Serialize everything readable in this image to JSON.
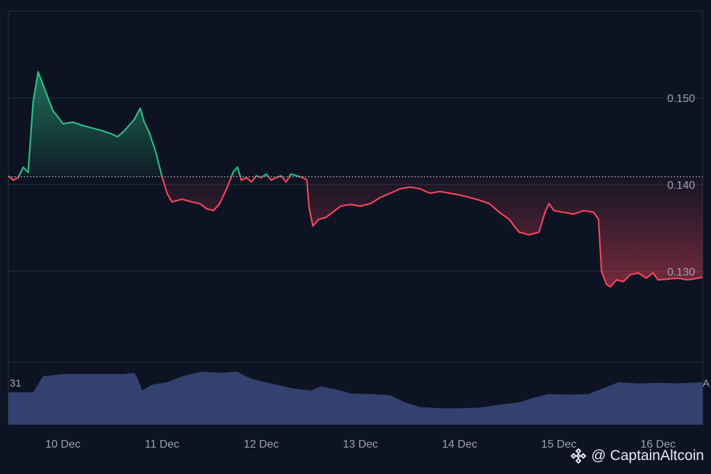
{
  "chart_data": {
    "type": "area",
    "title": "",
    "xlabel": "",
    "ylabel": "",
    "baseline": 0.1409,
    "y_ticks": [
      0.15,
      0.14,
      0.13
    ],
    "y_tick_labels": [
      "0.150",
      "0.140",
      "0.130"
    ],
    "x_tick_labels": [
      "10 Dec",
      "11 Dec",
      "12 Dec",
      "13 Dec",
      "14 Dec",
      "15 Dec",
      "16 Dec"
    ],
    "x_range": [
      9.45,
      16.45
    ],
    "ylim": [
      0.1195,
      0.16
    ],
    "grid": "horizontal",
    "colors": {
      "up": "#2ebd85",
      "down": "#f6465d",
      "volume": "#3a4a7c",
      "grid": "#2a3142",
      "text": "#9aa3b2",
      "baseline": "#c8ccd4"
    },
    "series": [
      {
        "values": [
          [
            9.45,
            0.141
          ],
          [
            9.5,
            0.1405
          ],
          [
            9.55,
            0.1408
          ],
          [
            9.6,
            0.142
          ],
          [
            9.65,
            0.1414
          ],
          [
            9.7,
            0.1495
          ],
          [
            9.75,
            0.153
          ],
          [
            9.8,
            0.1515
          ],
          [
            9.85,
            0.15
          ],
          [
            9.9,
            0.1485
          ],
          [
            9.95,
            0.1478
          ],
          [
            10.0,
            0.147
          ],
          [
            10.1,
            0.1472
          ],
          [
            10.2,
            0.1468
          ],
          [
            10.3,
            0.1465
          ],
          [
            10.4,
            0.1462
          ],
          [
            10.5,
            0.1458
          ],
          [
            10.55,
            0.1455
          ],
          [
            10.62,
            0.1462
          ],
          [
            10.72,
            0.1475
          ],
          [
            10.78,
            0.1488
          ],
          [
            10.82,
            0.1472
          ],
          [
            10.87,
            0.146
          ],
          [
            10.93,
            0.144
          ],
          [
            11.0,
            0.1409
          ],
          [
            11.05,
            0.139
          ],
          [
            11.1,
            0.138
          ],
          [
            11.2,
            0.1383
          ],
          [
            11.3,
            0.138
          ],
          [
            11.38,
            0.1378
          ],
          [
            11.45,
            0.1372
          ],
          [
            11.52,
            0.137
          ],
          [
            11.58,
            0.1378
          ],
          [
            11.65,
            0.1395
          ],
          [
            11.72,
            0.1415
          ],
          [
            11.76,
            0.142
          ],
          [
            11.8,
            0.1405
          ],
          [
            11.85,
            0.1408
          ],
          [
            11.9,
            0.1403
          ],
          [
            11.95,
            0.141
          ],
          [
            12.0,
            0.1408
          ],
          [
            12.05,
            0.1412
          ],
          [
            12.1,
            0.1405
          ],
          [
            12.15,
            0.1408
          ],
          [
            12.2,
            0.141
          ],
          [
            12.25,
            0.1403
          ],
          [
            12.3,
            0.1412
          ],
          [
            12.36,
            0.141
          ],
          [
            12.42,
            0.1408
          ],
          [
            12.46,
            0.1405
          ],
          [
            12.48,
            0.1375
          ],
          [
            12.52,
            0.1352
          ],
          [
            12.58,
            0.136
          ],
          [
            12.65,
            0.1362
          ],
          [
            12.72,
            0.1368
          ],
          [
            12.8,
            0.1375
          ],
          [
            12.9,
            0.1377
          ],
          [
            13.0,
            0.1375
          ],
          [
            13.1,
            0.1378
          ],
          [
            13.2,
            0.1385
          ],
          [
            13.3,
            0.139
          ],
          [
            13.4,
            0.1395
          ],
          [
            13.5,
            0.1397
          ],
          [
            13.6,
            0.1395
          ],
          [
            13.7,
            0.139
          ],
          [
            13.8,
            0.1392
          ],
          [
            13.9,
            0.139
          ],
          [
            14.0,
            0.1388
          ],
          [
            14.1,
            0.1385
          ],
          [
            14.2,
            0.1382
          ],
          [
            14.3,
            0.1378
          ],
          [
            14.4,
            0.1368
          ],
          [
            14.5,
            0.136
          ],
          [
            14.55,
            0.1352
          ],
          [
            14.6,
            0.1345
          ],
          [
            14.7,
            0.1342
          ],
          [
            14.8,
            0.1345
          ],
          [
            14.86,
            0.1368
          ],
          [
            14.9,
            0.1378
          ],
          [
            14.95,
            0.137
          ],
          [
            15.05,
            0.1368
          ],
          [
            15.15,
            0.1366
          ],
          [
            15.25,
            0.137
          ],
          [
            15.35,
            0.1368
          ],
          [
            15.4,
            0.136
          ],
          [
            15.43,
            0.13
          ],
          [
            15.48,
            0.1285
          ],
          [
            15.52,
            0.1282
          ],
          [
            15.58,
            0.129
          ],
          [
            15.65,
            0.1288
          ],
          [
            15.72,
            0.1296
          ],
          [
            15.8,
            0.1298
          ],
          [
            15.88,
            0.1292
          ],
          [
            15.95,
            0.1298
          ],
          [
            16.0,
            0.129
          ],
          [
            16.1,
            0.1291
          ],
          [
            16.2,
            0.1292
          ],
          [
            16.3,
            0.129
          ],
          [
            16.45,
            0.1293
          ]
        ]
      }
    ],
    "volume": {
      "label_left": "31",
      "label_right": "A",
      "values": [
        [
          9.45,
          0.55
        ],
        [
          9.7,
          0.55
        ],
        [
          9.8,
          0.82
        ],
        [
          10.0,
          0.86
        ],
        [
          10.2,
          0.86
        ],
        [
          10.4,
          0.86
        ],
        [
          10.6,
          0.86
        ],
        [
          10.72,
          0.88
        ],
        [
          10.75,
          0.8
        ],
        [
          10.8,
          0.58
        ],
        [
          10.9,
          0.68
        ],
        [
          11.05,
          0.72
        ],
        [
          11.2,
          0.82
        ],
        [
          11.4,
          0.9
        ],
        [
          11.6,
          0.88
        ],
        [
          11.75,
          0.9
        ],
        [
          11.9,
          0.78
        ],
        [
          12.1,
          0.7
        ],
        [
          12.3,
          0.62
        ],
        [
          12.5,
          0.58
        ],
        [
          12.6,
          0.65
        ],
        [
          12.75,
          0.6
        ],
        [
          12.9,
          0.53
        ],
        [
          13.1,
          0.52
        ],
        [
          13.3,
          0.5
        ],
        [
          13.45,
          0.38
        ],
        [
          13.6,
          0.3
        ],
        [
          13.8,
          0.28
        ],
        [
          14.0,
          0.28
        ],
        [
          14.2,
          0.29
        ],
        [
          14.4,
          0.34
        ],
        [
          14.6,
          0.38
        ],
        [
          14.75,
          0.46
        ],
        [
          14.9,
          0.52
        ],
        [
          15.1,
          0.51
        ],
        [
          15.3,
          0.52
        ],
        [
          15.45,
          0.62
        ],
        [
          15.6,
          0.72
        ],
        [
          15.8,
          0.7
        ],
        [
          16.0,
          0.71
        ],
        [
          16.2,
          0.7
        ],
        [
          16.45,
          0.72
        ]
      ]
    }
  },
  "watermark": {
    "text": "@ CaptainAltcoin",
    "logo": "binance-diamond-logo"
  }
}
